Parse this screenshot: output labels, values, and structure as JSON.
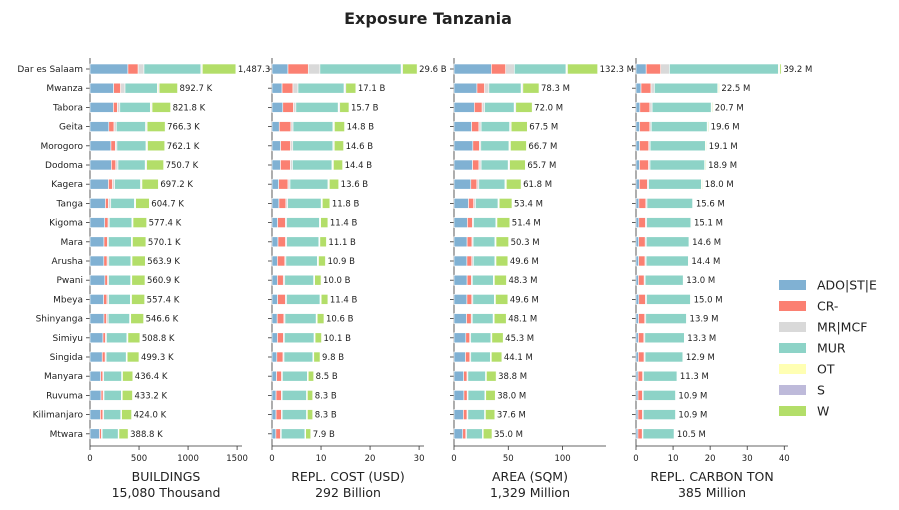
{
  "chart_data": {
    "type": "bar",
    "orientation": "horizontal",
    "stacked": true,
    "title": "Exposure Tanzania",
    "categories": [
      "Dar es Salaam",
      "Mwanza",
      "Tabora",
      "Geita",
      "Morogoro",
      "Dodoma",
      "Kagera",
      "Tanga",
      "Kigoma",
      "Mara",
      "Arusha",
      "Pwani",
      "Mbeya",
      "Shinyanga",
      "Simiyu",
      "Singida",
      "Manyara",
      "Ruvuma",
      "Kilimanjaro",
      "Mtwara"
    ],
    "legend": {
      "placement": "right",
      "items": [
        {
          "name": "ADO|ST|E",
          "color": "#80b1d3"
        },
        {
          "name": "CR-",
          "color": "#fb8072"
        },
        {
          "name": "MR|MCF",
          "color": "#d9d9d9"
        },
        {
          "name": "MUR",
          "color": "#8dd3c7"
        },
        {
          "name": "OT",
          "color": "#ffffb3"
        },
        {
          "name": "S",
          "color": "#bebada"
        },
        {
          "name": "W",
          "color": "#b3de69"
        }
      ]
    },
    "panels": [
      {
        "xlabel": "BUILDINGS",
        "total_label": "15,080 Thousand",
        "xlim": [
          0,
          1550
        ],
        "xticks": [
          0,
          500,
          1000,
          1500
        ],
        "xtick_labels": [
          "0",
          "500",
          "1000",
          "1500"
        ],
        "totals": [
          1487.3,
          892.7,
          821.8,
          766.3,
          762.1,
          750.7,
          697.2,
          604.7,
          577.4,
          570.1,
          563.9,
          560.9,
          557.4,
          546.6,
          508.8,
          499.3,
          436.4,
          433.2,
          424.0,
          388.8
        ],
        "value_labels": [
          "1,487.3 K",
          "892.7 K",
          "821.8 K",
          "766.3 K",
          "762.1 K",
          "750.7 K",
          "697.2 K",
          "604.7 K",
          "577.4 K",
          "570.1 K",
          "563.9 K",
          "560.9 K",
          "557.4 K",
          "546.6 K",
          "508.8 K",
          "499.3 K",
          "436.4 K",
          "433.2 K",
          "424.0 K",
          "388.8 K"
        ],
        "shares": [
          [
            0.26,
            0.07,
            0.04,
            0.39,
            0.005,
            0.005,
            0.23
          ],
          [
            0.27,
            0.08,
            0.05,
            0.37,
            0.01,
            0.01,
            0.21
          ],
          [
            0.29,
            0.05,
            0.03,
            0.38,
            0.01,
            0.01,
            0.23
          ],
          [
            0.25,
            0.07,
            0.03,
            0.39,
            0.01,
            0.01,
            0.24
          ],
          [
            0.28,
            0.06,
            0.02,
            0.39,
            0.01,
            0.01,
            0.23
          ],
          [
            0.29,
            0.06,
            0.03,
            0.37,
            0.01,
            0.01,
            0.23
          ],
          [
            0.27,
            0.06,
            0.03,
            0.38,
            0.01,
            0.01,
            0.24
          ],
          [
            0.26,
            0.05,
            0.04,
            0.4,
            0.01,
            0.01,
            0.23
          ],
          [
            0.26,
            0.06,
            0.02,
            0.4,
            0.01,
            0.01,
            0.24
          ],
          [
            0.25,
            0.06,
            0.02,
            0.41,
            0.01,
            0.01,
            0.24
          ],
          [
            0.25,
            0.06,
            0.03,
            0.4,
            0.01,
            0.01,
            0.24
          ],
          [
            0.27,
            0.05,
            0.02,
            0.4,
            0.01,
            0.01,
            0.24
          ],
          [
            0.25,
            0.06,
            0.03,
            0.4,
            0.01,
            0.01,
            0.24
          ],
          [
            0.26,
            0.05,
            0.03,
            0.4,
            0.01,
            0.01,
            0.24
          ],
          [
            0.26,
            0.05,
            0.02,
            0.41,
            0.01,
            0.01,
            0.24
          ],
          [
            0.25,
            0.06,
            0.02,
            0.41,
            0.01,
            0.01,
            0.24
          ],
          [
            0.25,
            0.05,
            0.02,
            0.42,
            0.01,
            0.01,
            0.24
          ],
          [
            0.26,
            0.05,
            0.02,
            0.41,
            0.01,
            0.01,
            0.24
          ],
          [
            0.25,
            0.06,
            0.02,
            0.41,
            0.01,
            0.01,
            0.24
          ],
          [
            0.25,
            0.05,
            0.02,
            0.42,
            0.01,
            0.01,
            0.24
          ]
        ]
      },
      {
        "xlabel": "REPL. COST (USD)",
        "total_label": "292 Billion",
        "xlim": [
          0,
          31
        ],
        "xticks": [
          0,
          10,
          20,
          30
        ],
        "xtick_labels": [
          "0",
          "10",
          "20",
          "30"
        ],
        "totals": [
          29.6,
          17.1,
          15.7,
          14.8,
          14.6,
          14.4,
          13.6,
          11.8,
          11.4,
          11.1,
          10.9,
          10.0,
          11.4,
          10.6,
          10.1,
          9.8,
          8.5,
          8.3,
          8.3,
          7.9
        ],
        "value_labels": [
          "29.6 B",
          "17.1 B",
          "15.7 B",
          "14.8 B",
          "14.6 B",
          "14.4 B",
          "13.6 B",
          "11.8 B",
          "11.4 B",
          "11.1 B",
          "10.9 B",
          "10.0 B",
          "11.4 B",
          "10.6 B",
          "10.1 B",
          "9.8 B",
          "8.5 B",
          "8.3 B",
          "8.3 B",
          "7.9 B"
        ],
        "shares": [
          [
            0.11,
            0.14,
            0.08,
            0.56,
            0.005,
            0.005,
            0.1
          ],
          [
            0.12,
            0.13,
            0.06,
            0.55,
            0.01,
            0.01,
            0.12
          ],
          [
            0.14,
            0.14,
            0.03,
            0.55,
            0.01,
            0.01,
            0.12
          ],
          [
            0.1,
            0.16,
            0.03,
            0.55,
            0.01,
            0.01,
            0.14
          ],
          [
            0.12,
            0.14,
            0.03,
            0.56,
            0.01,
            0.01,
            0.13
          ],
          [
            0.12,
            0.14,
            0.03,
            0.56,
            0.01,
            0.01,
            0.13
          ],
          [
            0.1,
            0.14,
            0.03,
            0.57,
            0.01,
            0.01,
            0.14
          ],
          [
            0.12,
            0.12,
            0.03,
            0.58,
            0.01,
            0.01,
            0.13
          ],
          [
            0.1,
            0.14,
            0.02,
            0.59,
            0.01,
            0.01,
            0.13
          ],
          [
            0.11,
            0.14,
            0.02,
            0.59,
            0.01,
            0.01,
            0.12
          ],
          [
            0.1,
            0.14,
            0.02,
            0.59,
            0.01,
            0.01,
            0.13
          ],
          [
            0.11,
            0.12,
            0.03,
            0.59,
            0.01,
            0.01,
            0.13
          ],
          [
            0.1,
            0.14,
            0.02,
            0.6,
            0.01,
            0.01,
            0.12
          ],
          [
            0.1,
            0.13,
            0.02,
            0.6,
            0.01,
            0.01,
            0.13
          ],
          [
            0.11,
            0.12,
            0.02,
            0.6,
            0.01,
            0.01,
            0.13
          ],
          [
            0.1,
            0.13,
            0.02,
            0.6,
            0.01,
            0.01,
            0.13
          ],
          [
            0.11,
            0.12,
            0.02,
            0.6,
            0.01,
            0.01,
            0.13
          ],
          [
            0.1,
            0.13,
            0.02,
            0.6,
            0.01,
            0.01,
            0.13
          ],
          [
            0.1,
            0.13,
            0.02,
            0.6,
            0.01,
            0.01,
            0.13
          ],
          [
            0.1,
            0.12,
            0.02,
            0.61,
            0.01,
            0.01,
            0.13
          ]
        ]
      },
      {
        "xlabel": "AREA (SQM)",
        "total_label": "1,329 Million",
        "xlim": [
          0,
          140
        ],
        "xticks": [
          0,
          50,
          100
        ],
        "xtick_labels": [
          "0",
          "50",
          "100"
        ],
        "totals": [
          132.3,
          78.3,
          72.0,
          67.5,
          66.7,
          65.7,
          61.8,
          53.4,
          51.4,
          50.3,
          49.6,
          48.3,
          49.6,
          48.1,
          45.3,
          44.1,
          38.8,
          38.0,
          37.6,
          35.0
        ],
        "value_labels": [
          "132.3 M",
          "78.3 M",
          "72.0 M",
          "67.5 M",
          "66.7 M",
          "65.7 M",
          "61.8 M",
          "53.4 M",
          "51.4 M",
          "50.3 M",
          "49.6 M",
          "48.3 M",
          "49.6 M",
          "48.1 M",
          "45.3 M",
          "44.1 M",
          "38.8 M",
          "38.0 M",
          "37.6 M",
          "35.0 M"
        ],
        "shares": [
          [
            0.26,
            0.1,
            0.06,
            0.36,
            0.005,
            0.005,
            0.21
          ],
          [
            0.27,
            0.09,
            0.05,
            0.38,
            0.01,
            0.01,
            0.19
          ],
          [
            0.26,
            0.1,
            0.03,
            0.38,
            0.01,
            0.01,
            0.21
          ],
          [
            0.24,
            0.1,
            0.03,
            0.39,
            0.01,
            0.01,
            0.22
          ],
          [
            0.26,
            0.09,
            0.02,
            0.39,
            0.01,
            0.01,
            0.22
          ],
          [
            0.26,
            0.09,
            0.03,
            0.38,
            0.01,
            0.01,
            0.22
          ],
          [
            0.25,
            0.09,
            0.03,
            0.39,
            0.01,
            0.01,
            0.22
          ],
          [
            0.25,
            0.09,
            0.03,
            0.39,
            0.01,
            0.01,
            0.22
          ],
          [
            0.24,
            0.09,
            0.02,
            0.4,
            0.01,
            0.01,
            0.23
          ],
          [
            0.24,
            0.09,
            0.02,
            0.4,
            0.01,
            0.01,
            0.23
          ],
          [
            0.24,
            0.09,
            0.03,
            0.4,
            0.01,
            0.01,
            0.22
          ],
          [
            0.25,
            0.08,
            0.02,
            0.4,
            0.01,
            0.01,
            0.23
          ],
          [
            0.24,
            0.09,
            0.02,
            0.4,
            0.01,
            0.01,
            0.23
          ],
          [
            0.24,
            0.09,
            0.02,
            0.4,
            0.01,
            0.01,
            0.23
          ],
          [
            0.24,
            0.08,
            0.02,
            0.41,
            0.01,
            0.01,
            0.23
          ],
          [
            0.24,
            0.09,
            0.02,
            0.41,
            0.01,
            0.01,
            0.22
          ],
          [
            0.23,
            0.08,
            0.02,
            0.42,
            0.01,
            0.01,
            0.23
          ],
          [
            0.24,
            0.08,
            0.02,
            0.41,
            0.01,
            0.01,
            0.23
          ],
          [
            0.23,
            0.09,
            0.02,
            0.41,
            0.01,
            0.01,
            0.23
          ],
          [
            0.23,
            0.08,
            0.02,
            0.42,
            0.01,
            0.01,
            0.23
          ]
        ]
      },
      {
        "xlabel": "REPL. CARBON TON",
        "total_label": "385 Million",
        "xlim": [
          0,
          41
        ],
        "xticks": [
          0,
          10,
          20,
          30,
          40
        ],
        "xtick_labels": [
          "0",
          "10",
          "20",
          "30",
          "40"
        ],
        "totals": [
          39.2,
          22.5,
          20.7,
          19.6,
          19.1,
          18.9,
          18.0,
          15.6,
          15.1,
          14.6,
          14.4,
          13.0,
          15.0,
          13.9,
          13.3,
          12.9,
          11.3,
          10.9,
          10.9,
          10.5
        ],
        "value_labels": [
          "39.2 M",
          "22.5 M",
          "20.7 M",
          "19.6 M",
          "19.1 M",
          "18.9 M",
          "18.0 M",
          "15.6 M",
          "15.1 M",
          "14.6 M",
          "14.4 M",
          "13.0 M",
          "15.0 M",
          "13.9 M",
          "13.3 M",
          "12.9 M",
          "11.3 M",
          "10.9 M",
          "10.9 M",
          "10.5 M"
        ],
        "shares": [
          [
            0.07,
            0.1,
            0.06,
            0.75,
            0.005,
            0.005,
            0.01
          ],
          [
            0.06,
            0.12,
            0.04,
            0.76,
            0.01,
            0.0,
            0.01
          ],
          [
            0.05,
            0.13,
            0.03,
            0.77,
            0.01,
            0.0,
            0.01
          ],
          [
            0.05,
            0.14,
            0.02,
            0.77,
            0.01,
            0.0,
            0.01
          ],
          [
            0.05,
            0.13,
            0.02,
            0.78,
            0.01,
            0.0,
            0.01
          ],
          [
            0.05,
            0.13,
            0.02,
            0.78,
            0.01,
            0.0,
            0.01
          ],
          [
            0.05,
            0.12,
            0.02,
            0.79,
            0.01,
            0.0,
            0.01
          ],
          [
            0.05,
            0.12,
            0.02,
            0.79,
            0.01,
            0.0,
            0.01
          ],
          [
            0.05,
            0.12,
            0.02,
            0.79,
            0.01,
            0.0,
            0.01
          ],
          [
            0.05,
            0.12,
            0.02,
            0.79,
            0.01,
            0.0,
            0.01
          ],
          [
            0.05,
            0.12,
            0.02,
            0.79,
            0.01,
            0.0,
            0.01
          ],
          [
            0.05,
            0.12,
            0.02,
            0.79,
            0.01,
            0.0,
            0.01
          ],
          [
            0.05,
            0.12,
            0.02,
            0.79,
            0.01,
            0.0,
            0.01
          ],
          [
            0.05,
            0.12,
            0.02,
            0.79,
            0.01,
            0.0,
            0.01
          ],
          [
            0.05,
            0.11,
            0.02,
            0.8,
            0.01,
            0.0,
            0.01
          ],
          [
            0.05,
            0.12,
            0.02,
            0.79,
            0.01,
            0.0,
            0.01
          ],
          [
            0.05,
            0.11,
            0.02,
            0.8,
            0.01,
            0.0,
            0.01
          ],
          [
            0.05,
            0.11,
            0.02,
            0.8,
            0.01,
            0.0,
            0.01
          ],
          [
            0.05,
            0.11,
            0.02,
            0.8,
            0.01,
            0.0,
            0.01
          ],
          [
            0.05,
            0.11,
            0.02,
            0.8,
            0.01,
            0.0,
            0.01
          ]
        ]
      }
    ]
  }
}
